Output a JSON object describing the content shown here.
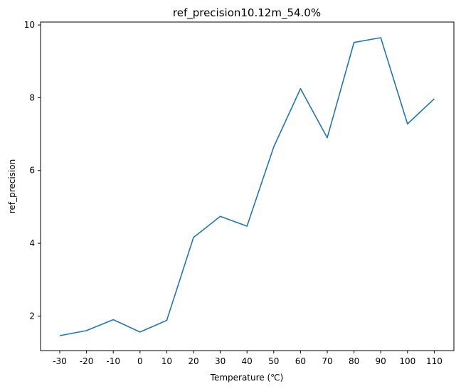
{
  "chart_data": {
    "type": "line",
    "title": "ref_precision10.12m_54.0%",
    "xlabel": "Temperature (℃)",
    "ylabel": "ref_precision",
    "x": [
      "-30",
      "-20",
      "-10",
      "0",
      "10",
      "20",
      "30",
      "40",
      "50",
      "60",
      "70",
      "80",
      "90",
      "100",
      "110"
    ],
    "series": [
      {
        "values": [
          1.46,
          1.6,
          1.9,
          1.56,
          1.88,
          4.16,
          4.74,
          4.47,
          6.65,
          8.25,
          6.9,
          9.52,
          9.65,
          7.28,
          7.97
        ]
      }
    ],
    "ylim": [
      1.05,
      10.08
    ],
    "yticks": [
      2,
      4,
      6,
      8,
      10
    ],
    "color": "#1f77b4",
    "grid": false,
    "legend": "none"
  }
}
